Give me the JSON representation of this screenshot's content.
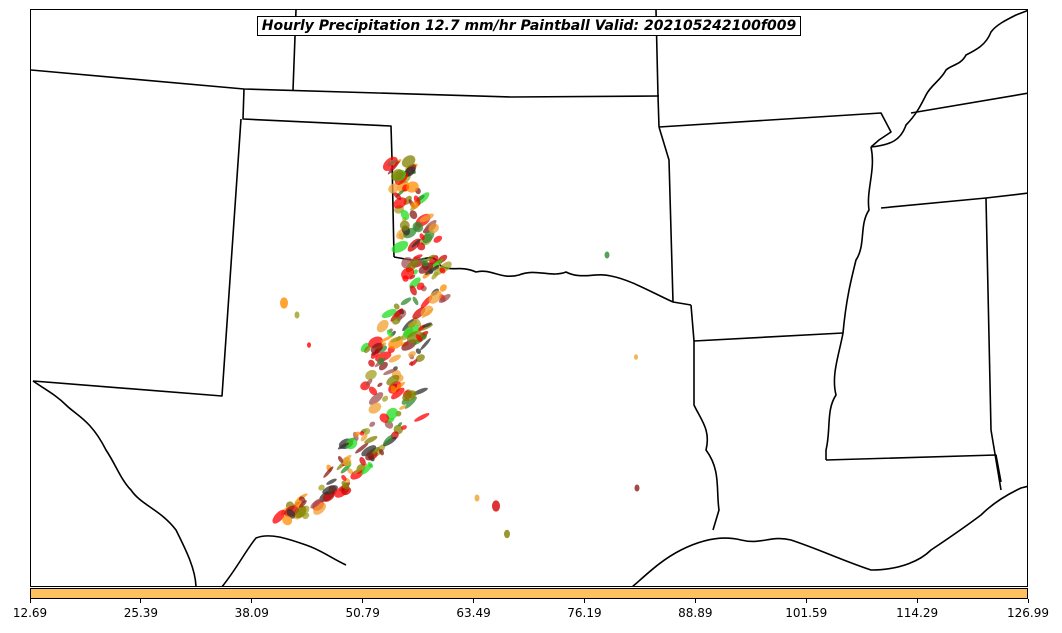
{
  "map": {
    "title": "Hourly Precipitation 12.7 mm/hr Paintball Valid: 202105242100f009",
    "colors": {
      "line": "#000000",
      "background": "#ffffff",
      "paint": [
        "#ff0000",
        "#d40000",
        "#8b1a1a",
        "#a05050",
        "#ff8c00",
        "#f0a030",
        "#1fdd1f",
        "#2e8b2e",
        "#808000",
        "#a0a020",
        "#303030"
      ]
    }
  },
  "colorbar": {
    "color": "#ffc060",
    "ticks": [
      "12.69",
      "25.39",
      "38.09",
      "50.79",
      "63.49",
      "76.19",
      "88.89",
      "101.59",
      "114.29",
      "126.99"
    ]
  }
}
